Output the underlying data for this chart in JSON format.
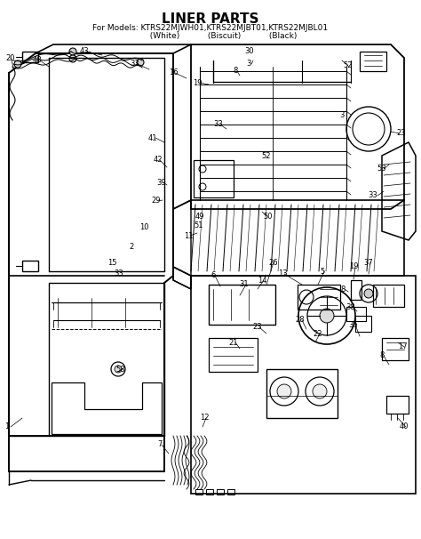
{
  "title": "LINER PARTS",
  "subtitle": "For Models: KTRS22MJWH01,KTRS22MJBT01,KTRS22MJBL01",
  "subtitle_line2": "          (White)           (Biscuit)           (Black)",
  "title_fontsize": 11,
  "subtitle_fontsize": 6.5,
  "background_color": "#ffffff",
  "text_color": "#000000",
  "figsize": [
    4.74,
    6.06
  ],
  "dpi": 100,
  "part_labels": [
    [
      8,
      480,
      "1"
    ],
    [
      12,
      65,
      "20"
    ],
    [
      42,
      68,
      "48"
    ],
    [
      95,
      58,
      "43"
    ],
    [
      152,
      72,
      "33"
    ],
    [
      195,
      82,
      "16"
    ],
    [
      222,
      93,
      "19"
    ],
    [
      265,
      80,
      "8"
    ],
    [
      280,
      72,
      "3"
    ],
    [
      281,
      58,
      "30"
    ],
    [
      392,
      74,
      "52"
    ],
    [
      452,
      150,
      "23"
    ],
    [
      172,
      155,
      "41"
    ],
    [
      178,
      180,
      "42"
    ],
    [
      182,
      205,
      "39"
    ],
    [
      176,
      226,
      "29"
    ],
    [
      162,
      255,
      "10"
    ],
    [
      148,
      278,
      "2"
    ],
    [
      126,
      295,
      "15"
    ],
    [
      134,
      307,
      "33"
    ],
    [
      212,
      265,
      "11"
    ],
    [
      224,
      253,
      "51"
    ],
    [
      225,
      243,
      "49"
    ],
    [
      302,
      243,
      "50"
    ],
    [
      246,
      140,
      "33"
    ],
    [
      385,
      130,
      "3"
    ],
    [
      430,
      190,
      "53"
    ],
    [
      420,
      220,
      "33"
    ],
    [
      300,
      175,
      "52"
    ],
    [
      308,
      295,
      "26"
    ],
    [
      240,
      310,
      "6"
    ],
    [
      275,
      320,
      "31"
    ],
    [
      295,
      315,
      "14"
    ],
    [
      318,
      308,
      "13"
    ],
    [
      363,
      305,
      "5"
    ],
    [
      398,
      300,
      "19"
    ],
    [
      415,
      295,
      "37"
    ],
    [
      395,
      345,
      "38"
    ],
    [
      398,
      365,
      "36"
    ],
    [
      338,
      360,
      "28"
    ],
    [
      358,
      375,
      "22"
    ],
    [
      290,
      368,
      "23"
    ],
    [
      263,
      385,
      "21"
    ],
    [
      430,
      400,
      "8"
    ],
    [
      453,
      390,
      "17"
    ],
    [
      455,
      480,
      "40"
    ],
    [
      230,
      470,
      "12"
    ],
    [
      180,
      500,
      "7"
    ],
    [
      136,
      415,
      "58"
    ],
    [
      386,
      325,
      "8"
    ]
  ]
}
